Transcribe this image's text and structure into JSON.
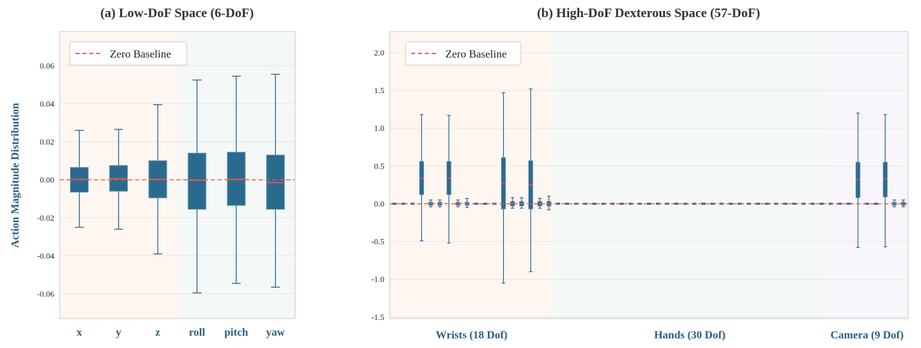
{
  "chart_data": [
    {
      "type": "box",
      "title": "(a) Low-DoF Space (6-DoF)",
      "ylabel": "Action Magnitude Distribution",
      "ylim": [
        -0.073,
        0.078
      ],
      "yticks": [
        -0.06,
        -0.04,
        -0.02,
        0.0,
        0.02,
        0.04,
        0.06
      ],
      "ytick_labels": [
        "-0.06",
        "-0.04",
        "-0.02",
        "0.00",
        "0.02",
        "0.04",
        "0.06"
      ],
      "categories": [
        "x",
        "y",
        "z",
        "roll",
        "pitch",
        "yaw"
      ],
      "boxes": [
        {
          "min": -0.025,
          "q1": -0.0065,
          "median": 0.0003,
          "q3": 0.0065,
          "max": 0.026
        },
        {
          "min": -0.026,
          "q1": -0.006,
          "median": 0.0005,
          "q3": 0.0075,
          "max": 0.0265
        },
        {
          "min": -0.039,
          "q1": -0.0095,
          "median": 0.0002,
          "q3": 0.01,
          "max": 0.0395
        },
        {
          "min": -0.0595,
          "q1": -0.0155,
          "median": -0.0003,
          "q3": 0.014,
          "max": 0.0525
        },
        {
          "min": -0.0545,
          "q1": -0.0135,
          "median": 0.0003,
          "q3": 0.0145,
          "max": 0.0545
        },
        {
          "min": -0.0565,
          "q1": -0.0155,
          "median": -0.0015,
          "q3": 0.013,
          "max": 0.0555
        }
      ],
      "baseline": 0.0,
      "legend": [
        {
          "label": "Zero Baseline"
        }
      ],
      "legend_position": "top-left",
      "regions": [
        {
          "from": 0,
          "to": 3,
          "color": "#fdf6f1"
        },
        {
          "from": 3,
          "to": 6,
          "color": "#f4f8f7"
        }
      ],
      "grid": true,
      "colors": {
        "box": "#2b6a8f",
        "median": "#e0584b",
        "baseline": "#e0584b",
        "axis_label": "#2a5f80"
      }
    },
    {
      "type": "box",
      "title": "(b) High-DoF Dexterous Space (57-DoF)",
      "ylim": [
        -1.52,
        2.28
      ],
      "yticks": [
        -1.5,
        -1.0,
        -0.5,
        0.0,
        0.5,
        1.0,
        1.5,
        2.0
      ],
      "ytick_labels": [
        "-1.5",
        "-1.0",
        "-0.5",
        "0.0",
        "0.5",
        "1.0",
        "1.5",
        "2.0"
      ],
      "n_dof": 57,
      "groups": [
        {
          "label": "Wrists (18 Dof)",
          "from": 0,
          "to": 18,
          "color": "#fdf6f1"
        },
        {
          "label": "Hands (30 Dof)",
          "from": 18,
          "to": 48,
          "color": "#f4f8f7"
        },
        {
          "label": "Camera (9 Dof)",
          "from": 48,
          "to": 57,
          "color": "#f8f6fa"
        }
      ],
      "boxes": [
        {
          "index": 3,
          "min": -0.49,
          "q1": 0.12,
          "median": 0.34,
          "q3": 0.56,
          "max": 1.18
        },
        {
          "index": 4,
          "min": -0.04,
          "q1": -0.02,
          "median": 0.0,
          "q3": 0.02,
          "max": 0.05
        },
        {
          "index": 5,
          "min": -0.04,
          "q1": -0.02,
          "median": 0.0,
          "q3": 0.02,
          "max": 0.05
        },
        {
          "index": 6,
          "min": -0.52,
          "q1": 0.12,
          "median": 0.34,
          "q3": 0.56,
          "max": 1.17
        },
        {
          "index": 7,
          "min": -0.04,
          "q1": -0.02,
          "median": 0.0,
          "q3": 0.02,
          "max": 0.05
        },
        {
          "index": 8,
          "min": -0.05,
          "q1": -0.02,
          "median": 0.0,
          "q3": 0.02,
          "max": 0.07
        },
        {
          "index": 12,
          "min": -1.05,
          "q1": -0.07,
          "median": 0.27,
          "q3": 0.61,
          "max": 1.47
        },
        {
          "index": 13,
          "min": -0.06,
          "q1": -0.03,
          "median": 0.0,
          "q3": 0.03,
          "max": 0.08
        },
        {
          "index": 14,
          "min": -0.06,
          "q1": -0.03,
          "median": 0.0,
          "q3": 0.03,
          "max": 0.08
        },
        {
          "index": 15,
          "min": -0.9,
          "q1": -0.07,
          "median": 0.25,
          "q3": 0.57,
          "max": 1.52
        },
        {
          "index": 16,
          "min": -0.06,
          "q1": -0.03,
          "median": 0.0,
          "q3": 0.03,
          "max": 0.07
        },
        {
          "index": 17,
          "min": -0.08,
          "q1": -0.03,
          "median": 0.0,
          "q3": 0.03,
          "max": 0.1
        },
        {
          "index": 51,
          "min": -0.58,
          "q1": 0.08,
          "median": 0.32,
          "q3": 0.55,
          "max": 1.2
        },
        {
          "index": 54,
          "min": -0.57,
          "q1": 0.09,
          "median": 0.33,
          "q3": 0.55,
          "max": 1.18
        },
        {
          "index": 55,
          "min": -0.04,
          "q1": -0.02,
          "median": 0.0,
          "q3": 0.02,
          "max": 0.05
        },
        {
          "index": 56,
          "min": -0.04,
          "q1": -0.02,
          "median": 0.0,
          "q3": 0.02,
          "max": 0.05
        }
      ],
      "baseline": 0.0,
      "legend": [
        {
          "label": "Zero Baseline"
        }
      ],
      "legend_position": "top-left",
      "grid": true,
      "colors": {
        "box": "#2b6a8f",
        "median": "#e0584b",
        "baseline": "#e0584b",
        "axis_label": "#2a5f80"
      }
    }
  ]
}
